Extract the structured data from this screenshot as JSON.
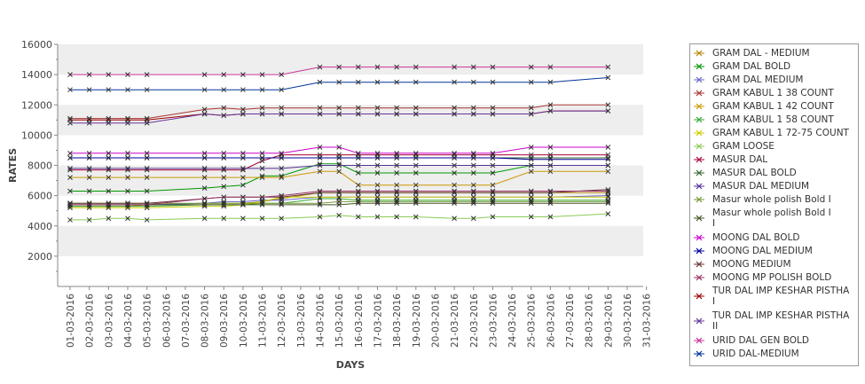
{
  "chart_data": {
    "type": "line",
    "xlabel": "DAYS",
    "ylabel": "RATES",
    "ylim": [
      0,
      16000
    ],
    "yticks": [
      2000,
      4000,
      6000,
      8000,
      10000,
      12000,
      14000,
      16000
    ],
    "grid": "alternating horizontal bands",
    "legend_position": "right",
    "categories": [
      "01-03-2016",
      "02-03-2016",
      "03-03-2016",
      "04-03-2016",
      "05-03-2016",
      "06-03-2016",
      "07-03-2016",
      "08-03-2016",
      "09-03-2016",
      "10-03-2016",
      "11-03-2016",
      "12-03-2016",
      "13-03-2016",
      "14-03-2016",
      "15-03-2016",
      "16-03-2016",
      "17-03-2016",
      "18-03-2016",
      "19-03-2016",
      "20-03-2016",
      "21-03-2016",
      "22-03-2016",
      "23-03-2016",
      "24-03-2016",
      "25-03-2016",
      "26-03-2016",
      "27-03-2016",
      "28-03-2016",
      "29-03-2016",
      "30-03-2016",
      "31-03-2016"
    ],
    "series": [
      {
        "name": "GRAM DAL - MEDIUM",
        "color": "#b8860b",
        "legend_lines": [
          "GRAM DAL - MEDIUM"
        ],
        "values": [
          5300,
          5300,
          5300,
          5300,
          5400,
          null,
          null,
          5500,
          5500,
          5500,
          5600,
          5800,
          null,
          6200,
          6200,
          6200,
          6200,
          6200,
          6200,
          null,
          6200,
          6200,
          6200,
          null,
          6200,
          6200,
          null,
          null,
          6200,
          null,
          null
        ]
      },
      {
        "name": "GRAM DAL BOLD",
        "color": "#009900",
        "legend_lines": [
          "GRAM DAL BOLD"
        ],
        "values": [
          6300,
          6300,
          6300,
          6300,
          6300,
          null,
          null,
          6500,
          6600,
          6700,
          7300,
          7300,
          null,
          8100,
          8100,
          7500,
          7500,
          7500,
          7500,
          null,
          7500,
          7500,
          7500,
          null,
          8000,
          8000,
          null,
          null,
          8000,
          null,
          null
        ]
      },
      {
        "name": "GRAM DAL MEDIUM",
        "color": "#6666cc",
        "legend_lines": [
          "GRAM DAL MEDIUM"
        ],
        "values": [
          5400,
          5400,
          5400,
          5400,
          5400,
          null,
          null,
          5500,
          5600,
          5600,
          5700,
          5700,
          null,
          5900,
          5900,
          5900,
          5900,
          5900,
          5900,
          null,
          5900,
          5900,
          5900,
          null,
          5900,
          5900,
          null,
          null,
          6000,
          null,
          null
        ]
      },
      {
        "name": "GRAM KABUL 1 38 COUNT",
        "color": "#aa3333",
        "legend_lines": [
          "GRAM KABUL 1 38 COUNT"
        ],
        "values": [
          11100,
          11100,
          11100,
          11100,
          11100,
          null,
          null,
          11700,
          11800,
          11700,
          11800,
          11800,
          null,
          11800,
          11800,
          11800,
          11800,
          11800,
          11800,
          null,
          11800,
          11800,
          11800,
          null,
          11800,
          12000,
          null,
          null,
          12000,
          null,
          null
        ]
      },
      {
        "name": "GRAM KABUL 1 42 COUNT",
        "color": "#cc9900",
        "legend_lines": [
          "GRAM KABUL 1 42 COUNT"
        ],
        "values": [
          7200,
          7200,
          7200,
          7200,
          7200,
          null,
          null,
          7200,
          7200,
          7200,
          7200,
          7200,
          null,
          7600,
          7600,
          6700,
          6700,
          6700,
          6700,
          null,
          6700,
          6700,
          6700,
          null,
          7600,
          7600,
          null,
          null,
          7600,
          null,
          null
        ]
      },
      {
        "name": "GRAM KABUL 1 58 COUNT",
        "color": "#33aa33",
        "legend_lines": [
          "GRAM KABUL 1 58 COUNT"
        ],
        "values": [
          5300,
          5300,
          5300,
          5300,
          5300,
          null,
          null,
          5400,
          5400,
          5400,
          5500,
          5500,
          null,
          5800,
          5800,
          5700,
          5700,
          5700,
          5700,
          null,
          5700,
          5700,
          5700,
          null,
          5700,
          5700,
          null,
          null,
          5700,
          null,
          null
        ]
      },
      {
        "name": "GRAM KABUL 1 72-75 COUNT",
        "color": "#cccc00",
        "legend_lines": [
          "GRAM KABUL 1 72-75 COUNT"
        ],
        "values": [
          5200,
          5200,
          5200,
          5200,
          5200,
          null,
          null,
          5300,
          5300,
          5400,
          5600,
          5900,
          null,
          5900,
          5900,
          5900,
          5900,
          5900,
          5900,
          null,
          5900,
          5900,
          5900,
          null,
          5900,
          5900,
          null,
          null,
          5900,
          null,
          null
        ]
      },
      {
        "name": "GRAM LOOSE",
        "color": "#88cc55",
        "legend_lines": [
          "GRAM LOOSE"
        ],
        "values": [
          4400,
          4400,
          4500,
          4500,
          4400,
          null,
          null,
          4500,
          4500,
          4500,
          4500,
          4500,
          null,
          4600,
          4700,
          4600,
          4600,
          4600,
          4600,
          null,
          4500,
          4500,
          4600,
          null,
          4600,
          4600,
          null,
          null,
          4800,
          null,
          null
        ]
      },
      {
        "name": "MASUR DAL",
        "color": "#aa0033",
        "legend_lines": [
          "MASUR DAL"
        ],
        "values": [
          7700,
          7700,
          7700,
          7700,
          7700,
          null,
          null,
          7700,
          7700,
          7700,
          8300,
          8700,
          null,
          8700,
          8700,
          8700,
          8700,
          8700,
          8700,
          null,
          8700,
          8700,
          8700,
          null,
          8700,
          8700,
          null,
          null,
          8700,
          null,
          null
        ]
      },
      {
        "name": "MASUR DAL BOLD",
        "color": "#336633",
        "legend_lines": [
          "MASUR DAL BOLD"
        ],
        "values": [
          8500,
          8500,
          8500,
          8500,
          8500,
          null,
          null,
          8500,
          8500,
          8500,
          8500,
          8500,
          null,
          8500,
          8500,
          8500,
          8500,
          8500,
          8500,
          null,
          8500,
          8500,
          8500,
          null,
          8500,
          8500,
          null,
          null,
          8500,
          null,
          null
        ]
      },
      {
        "name": "MASUR DAL MEDIUM",
        "color": "#553399",
        "legend_lines": [
          "MASUR DAL MEDIUM"
        ],
        "values": [
          7800,
          7800,
          7800,
          7800,
          7800,
          null,
          null,
          7800,
          7800,
          7800,
          7800,
          7800,
          null,
          8000,
          8000,
          8000,
          8000,
          8000,
          8000,
          null,
          8000,
          8000,
          8000,
          null,
          8000,
          8000,
          null,
          null,
          8000,
          null,
          null
        ]
      },
      {
        "name": "Masur whole polish Bold I",
        "color": "#779933",
        "legend_lines": [
          "Masur whole polish Bold I"
        ],
        "values": [
          5500,
          5500,
          5500,
          5500,
          5500,
          null,
          null,
          5500,
          5500,
          5500,
          5500,
          5500,
          null,
          5500,
          5600,
          5600,
          5600,
          5600,
          5600,
          null,
          5600,
          5600,
          5600,
          null,
          5600,
          5600,
          null,
          null,
          5600,
          null,
          null
        ]
      },
      {
        "name": "Masur whole polish Bold I I",
        "color": "#445522",
        "legend_lines": [
          "Masur whole polish Bold I",
          "I"
        ],
        "values": [
          5400,
          5400,
          5400,
          5400,
          5400,
          null,
          null,
          5400,
          5400,
          5400,
          5400,
          5400,
          null,
          5400,
          5400,
          5500,
          5500,
          5500,
          5500,
          null,
          5500,
          5500,
          5500,
          null,
          5500,
          5500,
          null,
          null,
          5500,
          null,
          null
        ]
      },
      {
        "name": "MOONG DAL BOLD",
        "color": "#cc00cc",
        "legend_lines": [
          "MOONG DAL BOLD"
        ],
        "values": [
          8800,
          8800,
          8800,
          8800,
          8800,
          null,
          null,
          8800,
          8800,
          8800,
          8800,
          8800,
          null,
          9200,
          9200,
          8800,
          8800,
          8800,
          8800,
          null,
          8800,
          8800,
          8800,
          null,
          9200,
          9200,
          null,
          null,
          9200,
          null,
          null
        ]
      },
      {
        "name": "MOONG DAL MEDIUM",
        "color": "#000099",
        "legend_lines": [
          "MOONG DAL MEDIUM"
        ],
        "values": [
          8500,
          8500,
          8500,
          8500,
          8500,
          null,
          null,
          8500,
          8500,
          8500,
          8500,
          8500,
          null,
          8500,
          8500,
          8500,
          8500,
          8500,
          8500,
          null,
          8500,
          8500,
          8500,
          null,
          8400,
          8400,
          null,
          null,
          8400,
          null,
          null
        ]
      },
      {
        "name": "MOONG MEDIUM",
        "color": "#663333",
        "legend_lines": [
          "MOONG MEDIUM"
        ],
        "values": [
          5500,
          5500,
          5500,
          5500,
          5500,
          null,
          null,
          5800,
          5900,
          5900,
          5900,
          5900,
          null,
          6200,
          6200,
          6200,
          6200,
          6200,
          6200,
          null,
          6200,
          6200,
          6200,
          null,
          6200,
          6200,
          null,
          null,
          6400,
          null,
          null
        ]
      },
      {
        "name": "MOONG MP POLISH BOLD",
        "color": "#993366",
        "legend_lines": [
          "MOONG MP POLISH BOLD"
        ],
        "values": [
          5400,
          5400,
          5400,
          5400,
          5400,
          null,
          null,
          5800,
          5900,
          5900,
          5900,
          6000,
          null,
          6300,
          6300,
          6300,
          6300,
          6300,
          6300,
          null,
          6300,
          6300,
          6300,
          null,
          6300,
          6300,
          null,
          null,
          6300,
          null,
          null
        ]
      },
      {
        "name": "TUR DAL IMP KESHAR PISTHA I",
        "color": "#990000",
        "legend_lines": [
          "TUR DAL IMP KESHAR PISTHA",
          "I"
        ],
        "values": [
          11000,
          11000,
          11000,
          11000,
          11000,
          null,
          null,
          11400,
          11300,
          11400,
          11400,
          11400,
          null,
          11400,
          11400,
          11400,
          11400,
          11400,
          11400,
          null,
          11400,
          11400,
          11400,
          null,
          11400,
          11600,
          null,
          null,
          11600,
          null,
          null
        ]
      },
      {
        "name": "TUR DAL IMP KESHAR PISTHA II",
        "color": "#663399",
        "legend_lines": [
          "TUR DAL IMP KESHAR PISTHA",
          "II"
        ],
        "values": [
          10800,
          10800,
          10800,
          10800,
          10800,
          null,
          null,
          11400,
          11300,
          11400,
          11400,
          11400,
          null,
          11400,
          11400,
          11400,
          11400,
          11400,
          11400,
          null,
          11400,
          11400,
          11400,
          null,
          11400,
          11600,
          null,
          null,
          11600,
          null,
          null
        ]
      },
      {
        "name": "URID DAL GEN BOLD",
        "color": "#cc3399",
        "legend_lines": [
          "URID DAL GEN BOLD"
        ],
        "values": [
          14000,
          14000,
          14000,
          14000,
          14000,
          null,
          null,
          14000,
          14000,
          14000,
          14000,
          14000,
          null,
          14500,
          14500,
          14500,
          14500,
          14500,
          14500,
          null,
          14500,
          14500,
          14500,
          null,
          14500,
          14500,
          null,
          null,
          14500,
          null,
          null
        ]
      },
      {
        "name": "URID DAL-MEDIUM",
        "color": "#003399",
        "legend_lines": [
          "URID DAL-MEDIUM"
        ],
        "values": [
          13000,
          13000,
          13000,
          13000,
          13000,
          null,
          null,
          13000,
          13000,
          13000,
          13000,
          13000,
          null,
          13500,
          13500,
          13500,
          13500,
          13500,
          13500,
          null,
          13500,
          13500,
          13500,
          null,
          13500,
          13500,
          null,
          null,
          13800,
          null,
          null
        ]
      }
    ]
  }
}
